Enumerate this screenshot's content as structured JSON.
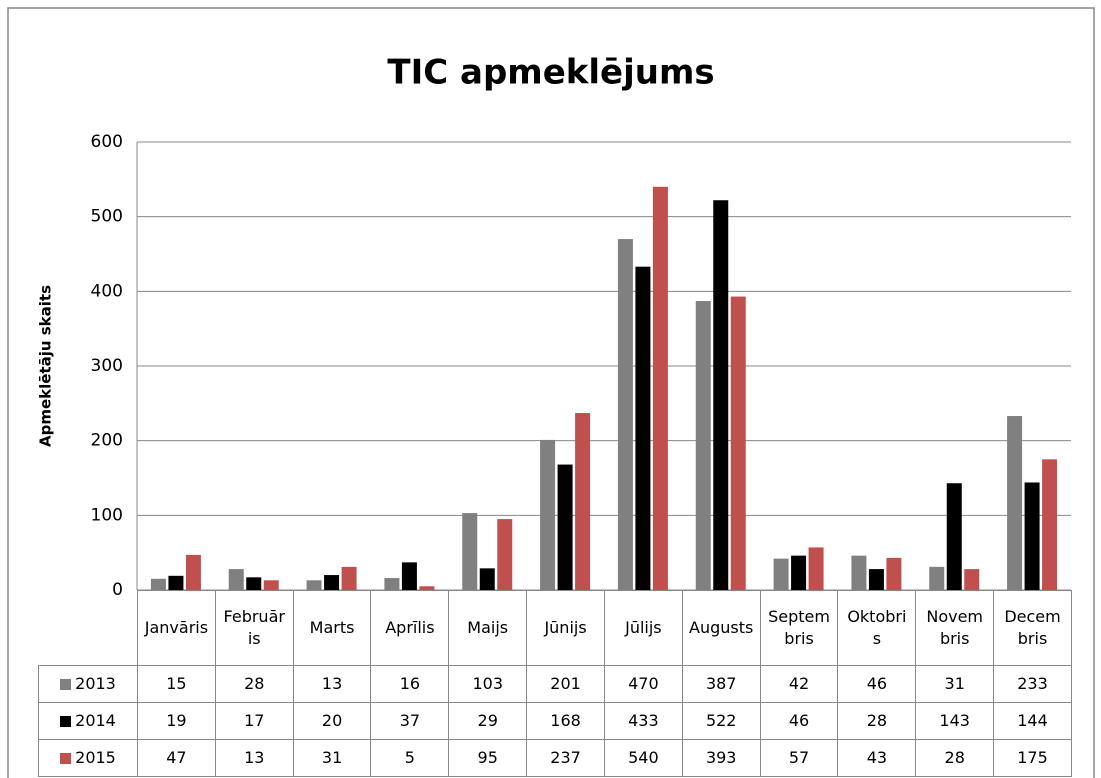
{
  "chart_data": {
    "type": "bar",
    "title": "TIC apmeklējums",
    "y_label": "Apmeklētāju skaits",
    "categories": [
      "Janvāris",
      "Februāris",
      "Marts",
      "Aprīlis",
      "Maijs",
      "Jūnijs",
      "Jūlijs",
      "Augusts",
      "Septembris",
      "Oktobris",
      "Novembris",
      "Decembris"
    ],
    "series": [
      {
        "name": "2013",
        "color": "#808080",
        "values": [
          15,
          28,
          13,
          16,
          103,
          201,
          470,
          387,
          42,
          46,
          31,
          233
        ]
      },
      {
        "name": "2014",
        "color": "#000000",
        "values": [
          19,
          17,
          20,
          37,
          29,
          168,
          433,
          522,
          46,
          28,
          143,
          144
        ]
      },
      {
        "name": "2015",
        "color": "#c0504d",
        "values": [
          47,
          13,
          31,
          5,
          95,
          237,
          540,
          393,
          57,
          43,
          28,
          175
        ]
      }
    ],
    "ylim": [
      0,
      600
    ],
    "yticks": [
      0,
      100,
      200,
      300,
      400,
      500,
      600
    ],
    "grid": true,
    "data_table": true
  }
}
